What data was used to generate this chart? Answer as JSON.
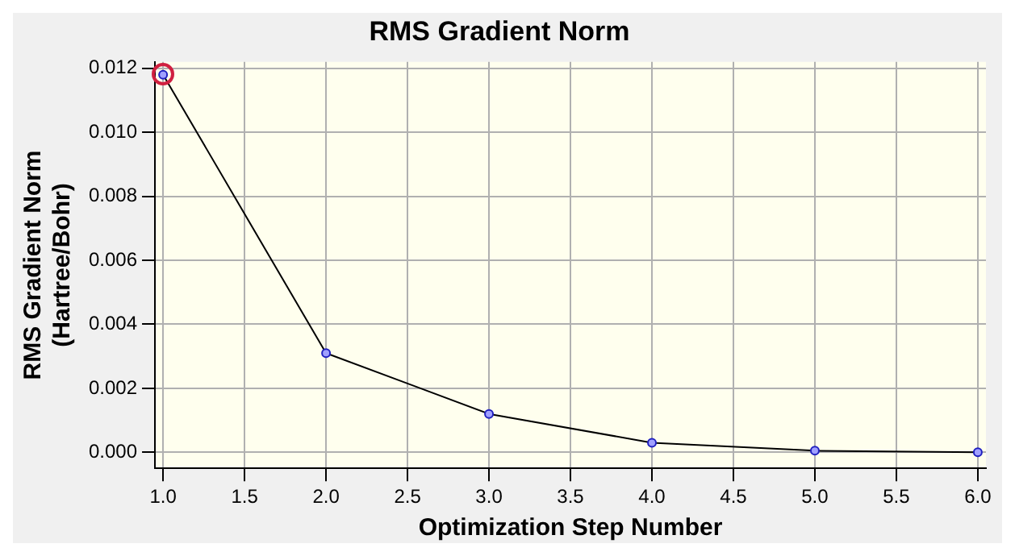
{
  "chart_data": {
    "type": "line",
    "title": "RMS Gradient Norm",
    "xlabel": "Optimization Step Number",
    "ylabel": "RMS Gradient Norm\n(Hartree/Bohr)",
    "x": [
      1,
      2,
      3,
      4,
      5,
      6
    ],
    "series": [
      {
        "color": "#000000",
        "values": [
          0.0118,
          0.0031,
          0.0012,
          0.0003,
          5e-05,
          0.0
        ]
      }
    ],
    "xlim": [
      0.95,
      6.05
    ],
    "xticks": [
      {
        "value": 1,
        "label": "1.0"
      },
      {
        "value": 1.5,
        "label": "1.5"
      },
      {
        "value": 2,
        "label": "2.0"
      },
      {
        "value": 2.5,
        "label": "2.5"
      },
      {
        "value": 3,
        "label": "3.0"
      },
      {
        "value": 3.5,
        "label": "3.5"
      },
      {
        "value": 4,
        "label": "4.0"
      },
      {
        "value": 4.5,
        "label": "4.5"
      },
      {
        "value": 5,
        "label": "5.0"
      },
      {
        "value": 5.5,
        "label": "5.5"
      },
      {
        "value": 6,
        "label": "6.0"
      }
    ],
    "ylim": [
      -0.0005,
      0.0122
    ],
    "yticks": [
      {
        "value": 0,
        "label": "0.000"
      },
      {
        "value": 0.002,
        "label": "0.002"
      },
      {
        "value": 0.004,
        "label": "0.004"
      },
      {
        "value": 0.006,
        "label": "0.006"
      },
      {
        "value": 0.008,
        "label": "0.008"
      },
      {
        "value": 0.01,
        "label": "0.010"
      },
      {
        "value": 0.012,
        "label": "0.012"
      }
    ],
    "grid": true,
    "marker": "circle",
    "line_style": "solid",
    "legend": false
  }
}
